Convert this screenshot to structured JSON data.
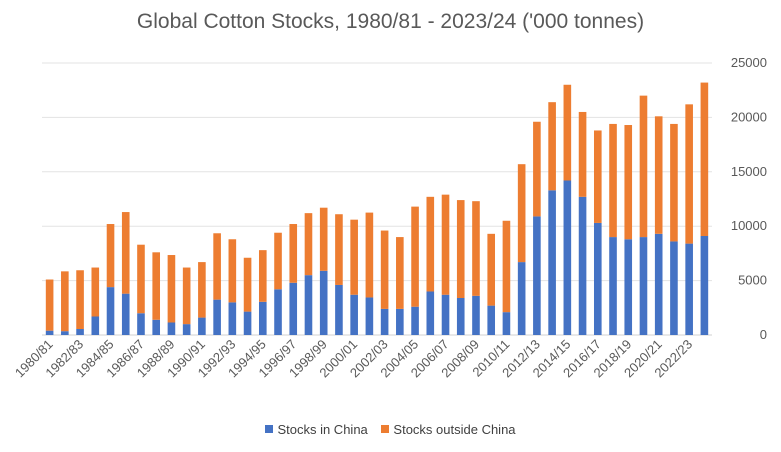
{
  "chart_data": {
    "type": "bar",
    "stacked": true,
    "title": "Global Cotton Stocks, 1980/81 - 2023/24 ('000 tonnes)",
    "xlabel": "",
    "ylabel": "",
    "ylim": [
      0,
      25000
    ],
    "yticks": [
      0,
      5000,
      10000,
      15000,
      20000,
      25000
    ],
    "y_axis_side": "right",
    "grid": true,
    "legend_position": "bottom",
    "categories": [
      "1980/81",
      "1981/82",
      "1982/83",
      "1983/84",
      "1984/85",
      "1985/86",
      "1986/87",
      "1987/88",
      "1988/89",
      "1989/90",
      "1990/91",
      "1991/92",
      "1992/93",
      "1993/94",
      "1994/95",
      "1995/96",
      "1996/97",
      "1997/98",
      "1998/99",
      "1999/00",
      "2000/01",
      "2001/02",
      "2002/03",
      "2003/04",
      "2004/05",
      "2005/06",
      "2006/07",
      "2007/08",
      "2008/09",
      "2009/10",
      "2010/11",
      "2011/12",
      "2012/13",
      "2013/14",
      "2014/15",
      "2015/16",
      "2016/17",
      "2017/18",
      "2018/19",
      "2019/20",
      "2020/21",
      "2021/22",
      "2022/23",
      "2023/24"
    ],
    "series": [
      {
        "name": "Stocks in China",
        "color": "#4472C4",
        "values": [
          400,
          350,
          550,
          1700,
          4400,
          3800,
          2000,
          1400,
          1150,
          1000,
          1600,
          3250,
          3000,
          2150,
          3050,
          4200,
          4800,
          5500,
          5900,
          4600,
          3700,
          3450,
          2400,
          2400,
          2600,
          4000,
          3700,
          3400,
          3600,
          2700,
          2100,
          6700,
          10900,
          13300,
          14200,
          12700,
          10300,
          9000,
          8800,
          9000,
          9300,
          8600,
          8400,
          9100
        ]
      },
      {
        "name": "Stocks outside China",
        "color": "#ED7D31",
        "values": [
          4700,
          5500,
          5400,
          4500,
          5800,
          7500,
          6300,
          6200,
          6200,
          5200,
          5100,
          6100,
          5800,
          4950,
          4750,
          5200,
          5400,
          5700,
          5800,
          6500,
          6900,
          7800,
          7200,
          6600,
          9200,
          8700,
          9200,
          9000,
          8700,
          6600,
          8400,
          9000,
          8700,
          8100,
          8800,
          7800,
          8500,
          10400,
          10500,
          13000,
          10800,
          10800,
          12800,
          14100
        ]
      }
    ]
  }
}
